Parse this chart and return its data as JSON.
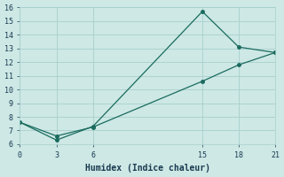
{
  "line1_x": [
    0,
    3,
    6,
    15,
    18,
    21
  ],
  "line1_y": [
    7.6,
    6.3,
    7.3,
    15.7,
    13.1,
    12.7
  ],
  "line2_x": [
    0,
    3,
    6,
    15,
    18,
    21
  ],
  "line2_y": [
    7.6,
    6.6,
    7.25,
    10.6,
    11.8,
    12.7
  ],
  "xlabel": "Humidex (Indice chaleur)",
  "xlim": [
    0,
    21
  ],
  "ylim": [
    6,
    16
  ],
  "xticks": [
    0,
    3,
    6,
    15,
    18,
    21
  ],
  "yticks": [
    6,
    7,
    8,
    9,
    10,
    11,
    12,
    13,
    14,
    15,
    16
  ],
  "line_color": "#1a6b5e",
  "bg_color": "#cde8e5",
  "grid_color": "#a8d0cc",
  "font_color": "#1a3a50"
}
